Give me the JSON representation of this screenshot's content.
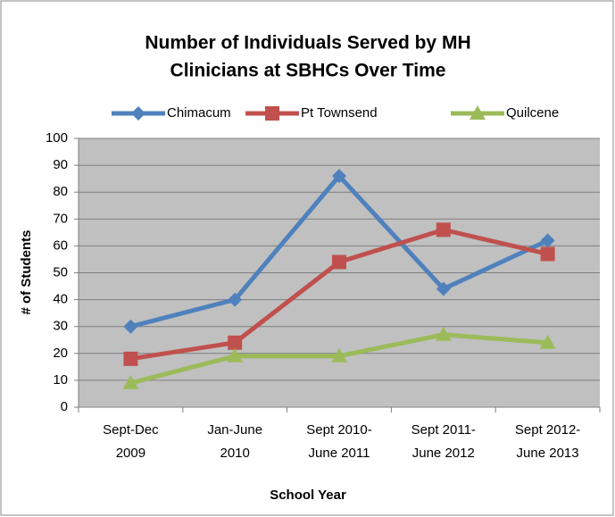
{
  "chart_data": {
    "type": "line",
    "title": [
      "Number of Individuals Served by MH",
      "Clinicians at SBHCs Over Time"
    ],
    "x_label": "School Year",
    "y_label": "# of Students",
    "categories": [
      [
        "Sept-Dec",
        "2009"
      ],
      [
        "Jan-June",
        "2010"
      ],
      [
        "Sept 2010-",
        "June 2011"
      ],
      [
        "Sept 2011-",
        "June 2012"
      ],
      [
        "Sept 2012-",
        "June 2013"
      ]
    ],
    "series": [
      {
        "name": "Chimacum",
        "color": "#4f81bd",
        "marker": "diamond",
        "values": [
          30,
          40,
          86,
          44,
          62
        ]
      },
      {
        "name": "Pt Townsend",
        "color": "#c0504d",
        "marker": "square",
        "values": [
          18,
          24,
          54,
          66,
          57
        ]
      },
      {
        "name": "Quilcene",
        "color": "#9bbb59",
        "marker": "triangle",
        "values": [
          9,
          19,
          19,
          27,
          24
        ]
      }
    ],
    "ylim": [
      0,
      100
    ],
    "yticks": [
      0,
      10,
      20,
      30,
      40,
      50,
      60,
      70,
      80,
      90,
      100
    ],
    "grid": true,
    "legend": "top",
    "plot_background": "#c0c0c0"
  }
}
